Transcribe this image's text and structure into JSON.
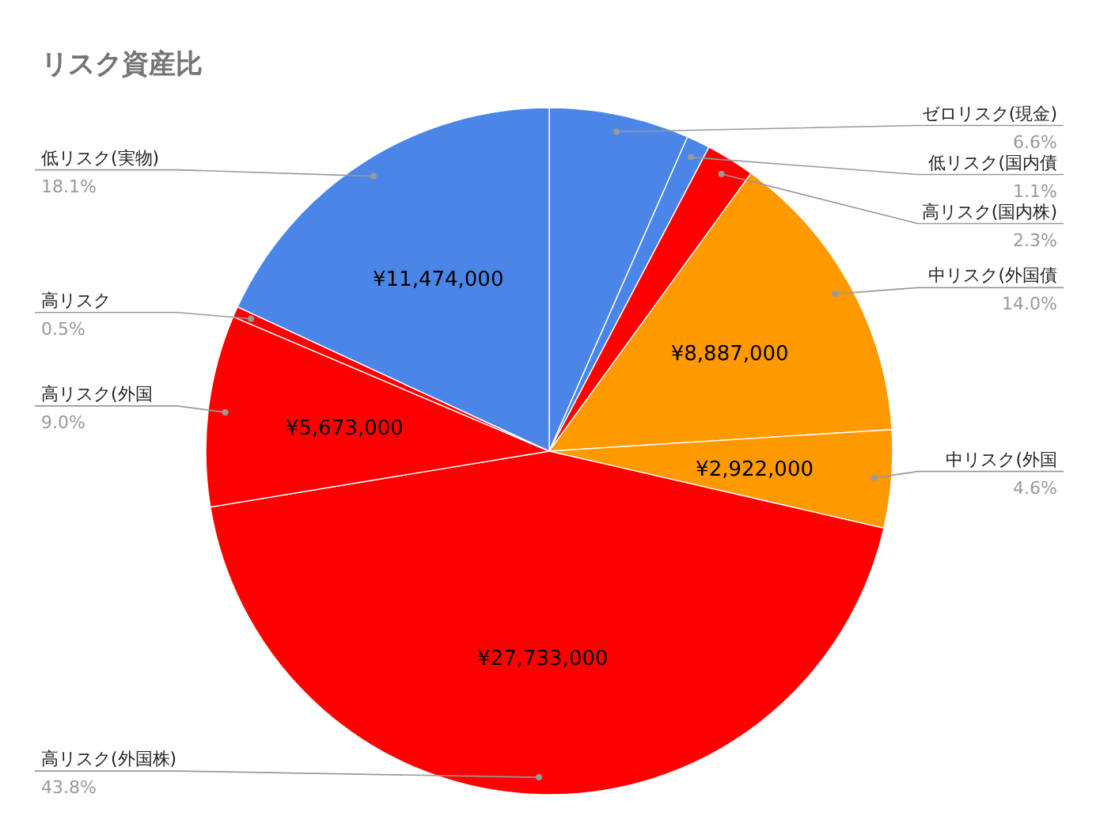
{
  "chart_data": {
    "type": "pie",
    "title": "リスク資産比",
    "categories": [
      "ゼロリスク(現金)",
      "低リスク(国内債",
      "高リスク(国内株)",
      "中リスク(外国債",
      "中リスク(外国",
      "高リスク(外国株)",
      "高リスク(外国",
      "高リスク",
      "低リスク(実物)"
    ],
    "values": [
      6.6,
      1.1,
      2.3,
      14.0,
      4.6,
      43.8,
      9.0,
      0.5,
      18.1
    ],
    "colors": [
      "#4a86e8",
      "#4a86e8",
      "#ff0000",
      "#ff9900",
      "#ff9900",
      "#ff0000",
      "#ff0000",
      "#ff0000",
      "#4a86e8"
    ],
    "value_labels": [
      "6.6%",
      "1.1%",
      "2.3%",
      "14.0%",
      "4.6%",
      "43.8%",
      "9.0%",
      "0.5%",
      "18.1%"
    ],
    "annotations": [
      {
        "text": "¥8,887,000",
        "x": "中リスク(外国債"
      },
      {
        "text": "¥2,922,000",
        "x": "中リスク(外国"
      },
      {
        "text": "¥27,733,000",
        "x": "高リスク(外国株)"
      },
      {
        "text": "¥5,673,000",
        "x": "高リスク(外国"
      },
      {
        "text": "¥11,474,000",
        "x": "低リスク(実物)"
      }
    ]
  }
}
